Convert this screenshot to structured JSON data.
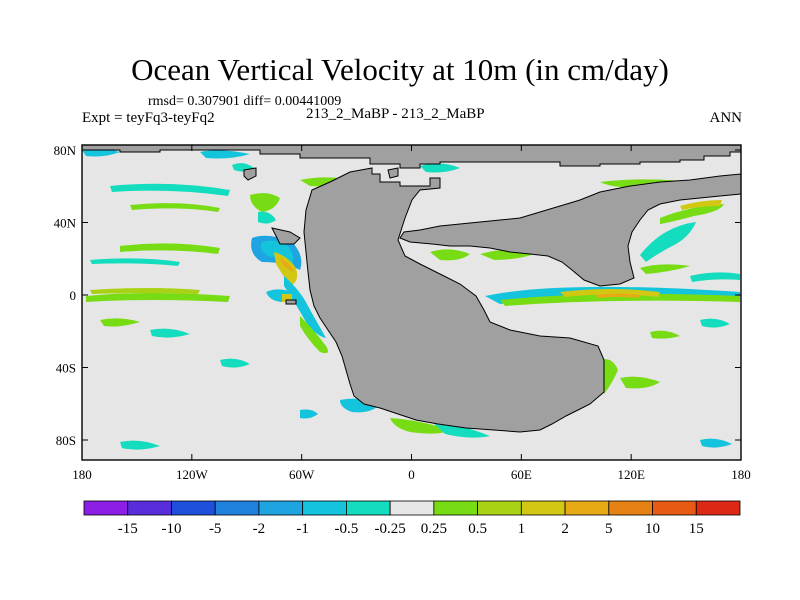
{
  "title": "Ocean Vertical Velocity at 10m (in cm/day)",
  "stats": "rmsd= 0.307901  diff= 0.00441009",
  "left_label": "Expt = teyFq3-teyFq2",
  "center_label": "213_2_MaBP - 213_2_MaBP",
  "right_label": "ANN",
  "y_ticks": [
    "80N",
    "40N",
    "0",
    "40S",
    "80S"
  ],
  "x_ticks": [
    "180",
    "120W",
    "60W",
    "0",
    "60E",
    "120E",
    "180"
  ],
  "colorbar": {
    "labels": [
      "-15",
      "-10",
      "-5",
      "-2",
      "-1",
      "-0.5",
      "-0.25",
      "0.25",
      "0.5",
      "1",
      "2",
      "5",
      "10",
      "15"
    ],
    "colors": [
      "#8c1ee6",
      "#5a2ddc",
      "#1e50dc",
      "#1e82dc",
      "#1ea5e1",
      "#14c3dc",
      "#14dcbe",
      "#e6e6e6",
      "#78dc14",
      "#aad214",
      "#d2c814",
      "#e6aa14",
      "#e68214",
      "#e65a14",
      "#dc2814"
    ]
  },
  "colors": {
    "land": "#a0a0a0",
    "ocean_neutral": "#e6e6e6"
  }
}
